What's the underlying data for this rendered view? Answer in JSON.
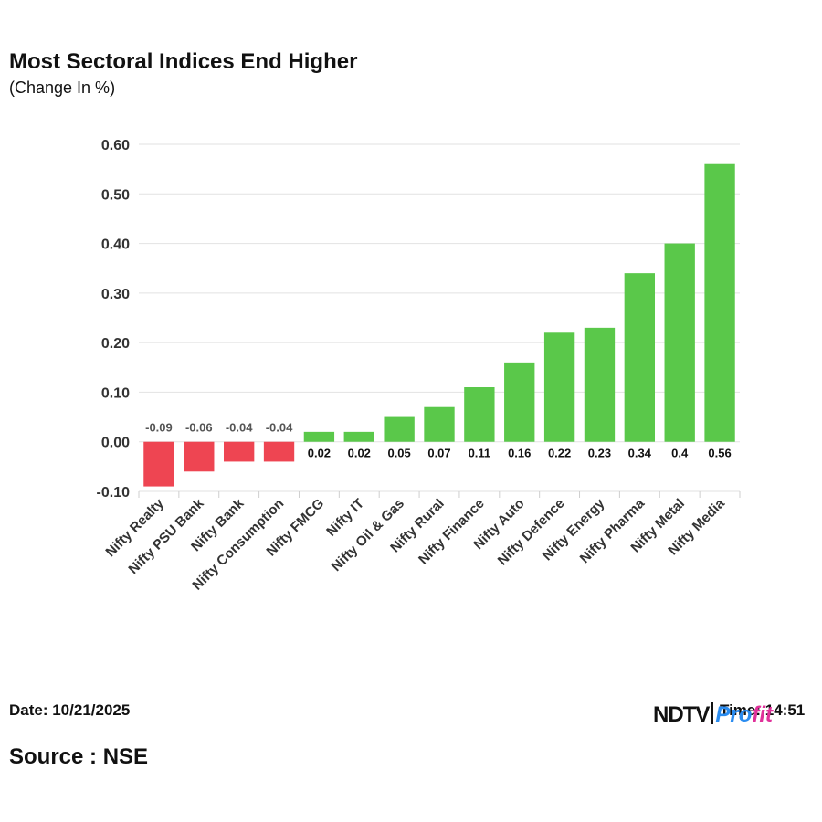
{
  "title": "Most Sectoral Indices End Higher",
  "subtitle": "(Change In %)",
  "footer": {
    "date": "Date: 10/21/2025",
    "time": "Time: 14:51",
    "source": "Source : NSE",
    "logo_left": "NDTV",
    "logo_right_a": "Pro",
    "logo_right_b": "fit"
  },
  "colors": {
    "positive": "#5ac84a",
    "negative": "#ee4552",
    "grid": "#e2e2e2",
    "axis_text": "#333333",
    "label_negative": "#555555",
    "label_positive": "#111111"
  },
  "chart_data": {
    "type": "bar",
    "title": "Most Sectoral Indices End Higher",
    "subtitle": "(Change In %)",
    "categories": [
      "Nifty Realty",
      "Nifty PSU Bank",
      "Nifty Bank",
      "Nifty Consumption",
      "Nifty FMCG",
      "Nifty IT",
      "Nifty Oil & Gas",
      "Nifty Rural",
      "Nifty Finance",
      "Nifty Auto",
      "Nifty Defence",
      "Nifty Energy",
      "Nifty Pharma",
      "Nifty Metal",
      "Nifty Media"
    ],
    "values": [
      -0.09,
      -0.06,
      -0.04,
      -0.04,
      0.02,
      0.02,
      0.05,
      0.07,
      0.11,
      0.16,
      0.22,
      0.23,
      0.34,
      0.4,
      0.56
    ],
    "data_labels": [
      "-0.09",
      "-0.06",
      "-0.04",
      "-0.04",
      "0.02",
      "0.02",
      "0.05",
      "0.07",
      "0.11",
      "0.16",
      "0.22",
      "0.23",
      "0.34",
      "0.4",
      "0.56"
    ],
    "ylim": [
      -0.1,
      0.6
    ],
    "yticks": [
      0.6,
      0.5,
      0.4,
      0.3,
      0.2,
      0.1,
      0.0,
      -0.1
    ],
    "ytick_labels": [
      "0.60",
      "0.50",
      "0.40",
      "0.30",
      "0.20",
      "0.10",
      "0.00",
      "-0.10"
    ],
    "xlabel": "",
    "ylabel": "",
    "grid": true
  }
}
